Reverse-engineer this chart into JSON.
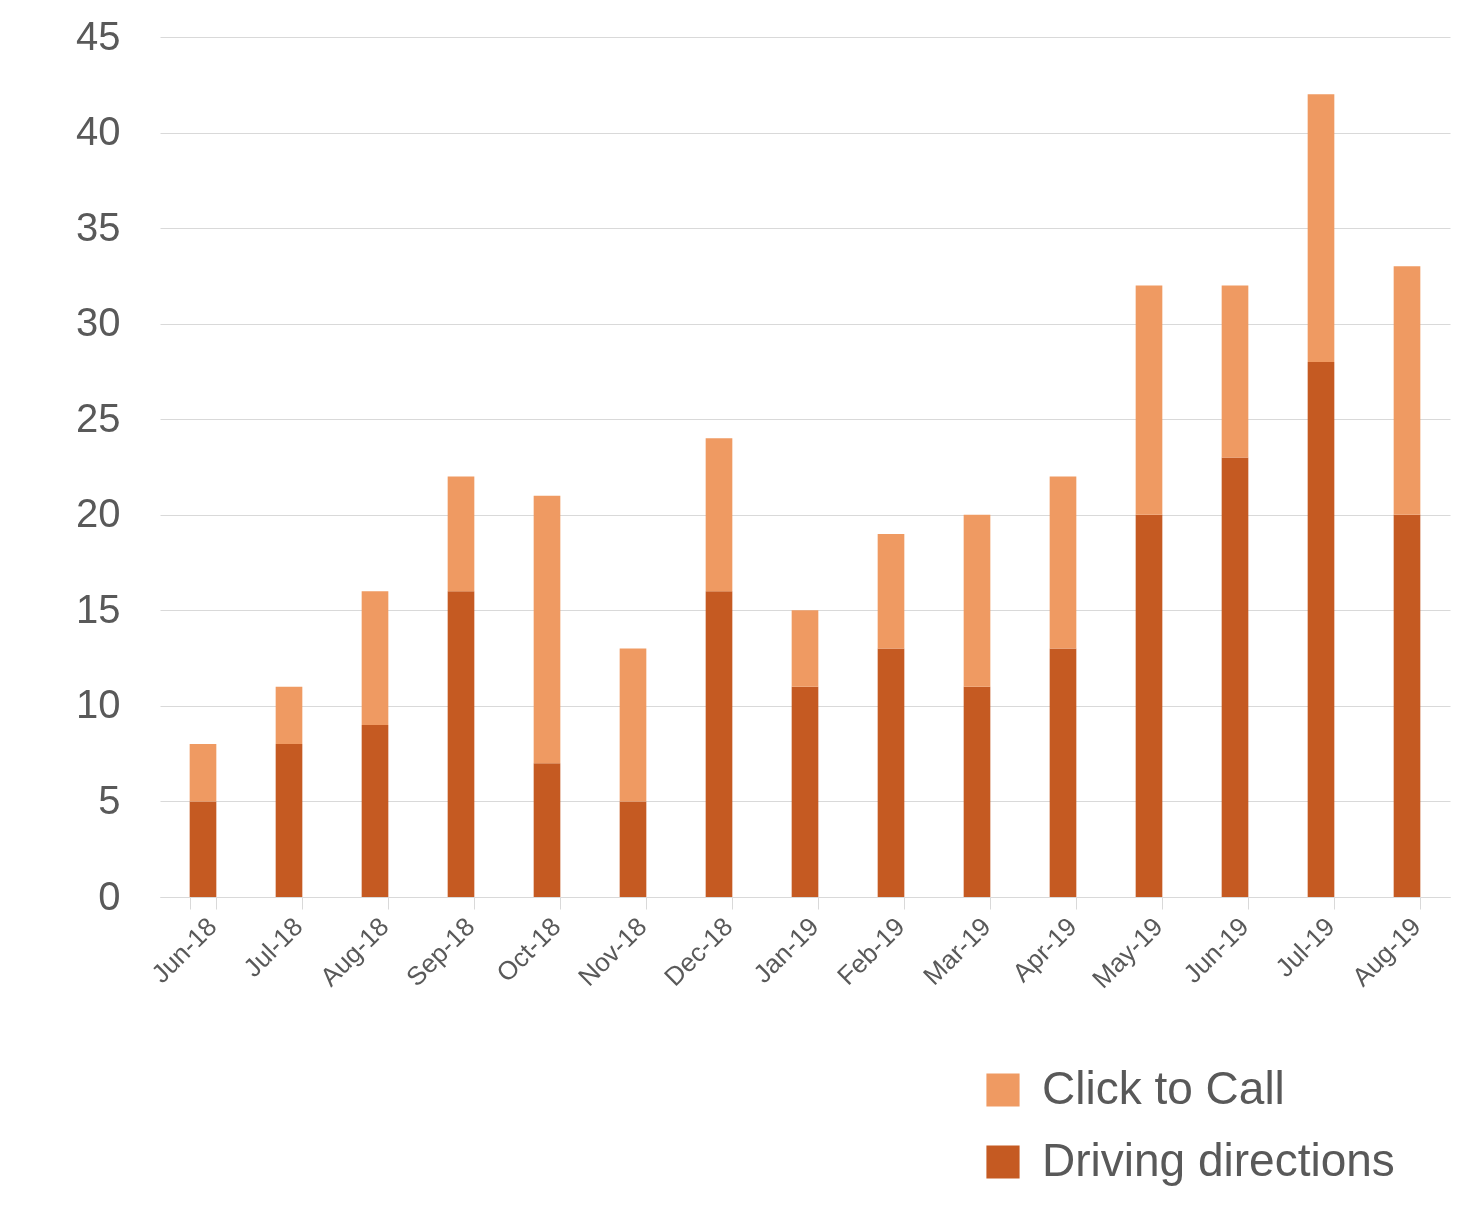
{
  "chart_data": {
    "type": "bar",
    "stacked": true,
    "categories": [
      "Jun-18",
      "Jul-18",
      "Aug-18",
      "Sep-18",
      "Oct-18",
      "Nov-18",
      "Dec-18",
      "Jan-19",
      "Feb-19",
      "Mar-19",
      "Apr-19",
      "May-19",
      "Jun-19",
      "Jul-19",
      "Aug-19"
    ],
    "series": [
      {
        "name": "Driving directions",
        "color": "#c55a22",
        "values": [
          5,
          8,
          9,
          16,
          7,
          5,
          16,
          11,
          13,
          11,
          13,
          20,
          23,
          28,
          20
        ]
      },
      {
        "name": "Click to Call",
        "color": "#ef9a62",
        "values": [
          3,
          3,
          7,
          6,
          14,
          8,
          8,
          4,
          6,
          9,
          9,
          12,
          9,
          14,
          13
        ]
      }
    ],
    "ylim": [
      0,
      45
    ],
    "yticks": [
      0,
      5,
      10,
      15,
      20,
      25,
      30,
      35,
      40,
      45
    ],
    "grid": "y",
    "legend": "bottom right"
  }
}
